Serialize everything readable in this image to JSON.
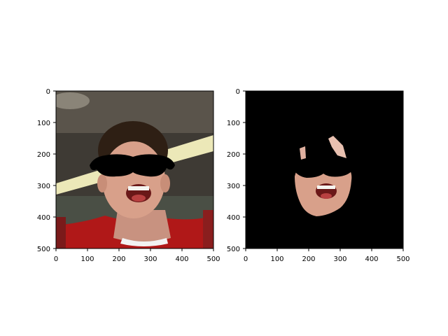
{
  "chart_data": [
    {
      "type": "image",
      "content": "photo of a smiling young man in a red shirt, with a black mustache-shaped overlay covering his eyes",
      "xlim": [
        0,
        500
      ],
      "ylim": [
        500,
        0
      ],
      "xticks": [
        0,
        100,
        200,
        300,
        400,
        500
      ],
      "yticks": [
        0,
        100,
        200,
        300,
        400,
        500
      ],
      "grid": false
    },
    {
      "type": "image",
      "content": "segmentation mask: black background, only the face region and black mustache overlay visible",
      "xlim": [
        0,
        500
      ],
      "ylim": [
        500,
        0
      ],
      "xticks": [
        0,
        100,
        200,
        300,
        400,
        500
      ],
      "yticks": [
        0,
        100,
        200,
        300,
        400,
        500
      ],
      "grid": false
    }
  ],
  "colors": {
    "mask_background": "#000000",
    "shirt": "#b01818",
    "skin": "#d8a08a",
    "overlay": "#000000"
  }
}
